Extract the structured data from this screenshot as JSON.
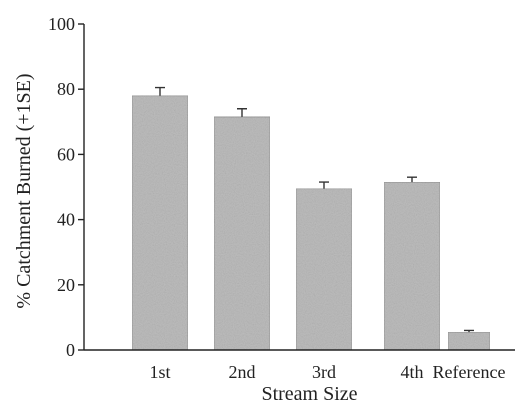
{
  "chart_data": {
    "type": "bar",
    "categories": [
      "1st",
      "2nd",
      "3rd",
      "4th",
      "Reference"
    ],
    "values": [
      78,
      71.5,
      49.5,
      51.5,
      5.5
    ],
    "error": [
      2.5,
      2.5,
      2.0,
      1.5,
      0.5
    ],
    "xlabel": "Stream Size",
    "ylabel": "% Catchment Burned (+1SE)",
    "ylim": [
      0,
      100
    ],
    "yticks": [
      0,
      20,
      40,
      60,
      80,
      100
    ],
    "grid": false,
    "bar_color": "#bdbdbd"
  }
}
